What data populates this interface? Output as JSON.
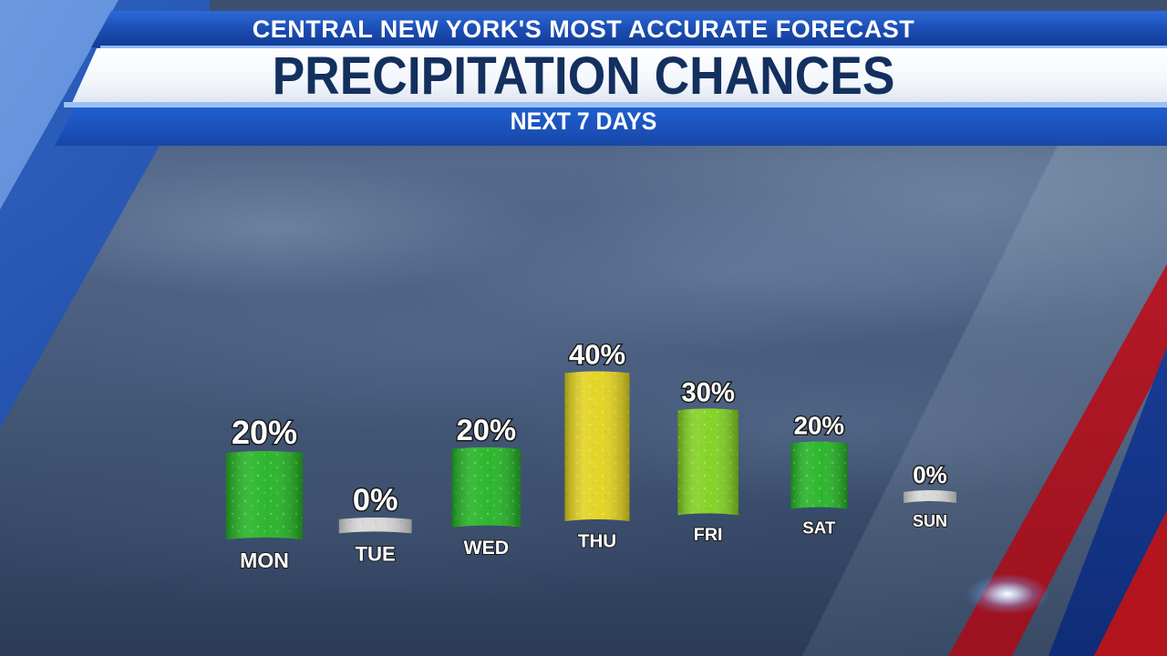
{
  "header": {
    "kicker": "CENTRAL NEW YORK'S MOST ACCURATE FORECAST",
    "title": "PRECIPITATION CHANCES",
    "subtitle": "NEXT 7 DAYS"
  },
  "colors": {
    "low": "#22b322",
    "mid": "#7fd11c",
    "high": "#e2d21a",
    "zero": "#d6d6d6",
    "frame_blue": "#1a4bb0",
    "title_navy": "#13305e",
    "accent_red": "#c61d2a"
  },
  "chart_data": {
    "type": "bar",
    "categories": [
      "MON",
      "TUE",
      "WED",
      "THU",
      "FRI",
      "SAT",
      "SUN"
    ],
    "values": [
      20,
      0,
      20,
      40,
      30,
      20,
      0
    ],
    "value_labels": [
      "20%",
      "0%",
      "20%",
      "40%",
      "30%",
      "20%",
      "0%"
    ],
    "units": "%",
    "ylim": [
      0,
      40
    ],
    "grid": false,
    "legend": "none"
  }
}
